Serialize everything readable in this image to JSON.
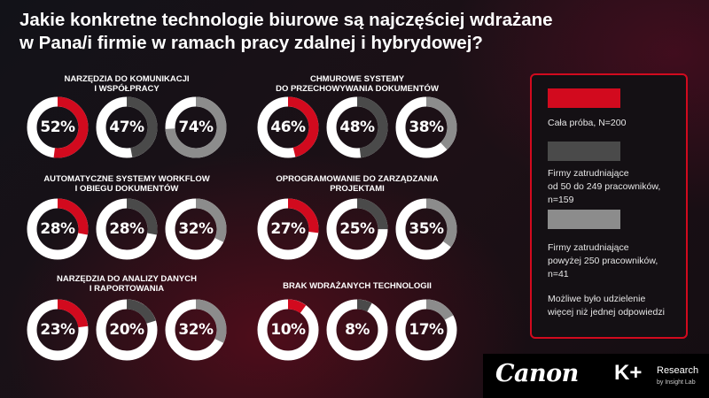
{
  "title": {
    "line1": "Jakie konkretne technologie biurowe są najczęściej wdrażane",
    "line2": "w Pana/i firmie w ramach pracy zdalnej i hybrydowej?"
  },
  "colors": {
    "series1": "#d20a1e",
    "series2": "#4a4a4a",
    "series3": "#8c8c8c",
    "track": "#ffffff"
  },
  "chart_data": {
    "type": "donut",
    "series": [
      {
        "name": "Cała próba, N=200",
        "color": "#d20a1e"
      },
      {
        "name": "Firmy zatrudniające od 50 do 249 pracowników, n=159",
        "color": "#4a4a4a"
      },
      {
        "name": "Firmy zatrudniające powyżej 250 pracowników, n=41",
        "color": "#8c8c8c"
      }
    ],
    "groups": [
      {
        "title_lines": [
          "NARZĘDZIA DO KOMUNIKACJI",
          "I WSPÓŁPRACY"
        ],
        "values": [
          52,
          47,
          74
        ],
        "labels": [
          "52%",
          "47%",
          "74%"
        ]
      },
      {
        "title_lines": [
          "CHMUROWE SYSTEMY",
          "DO PRZECHOWYWANIA DOKUMENTÓW"
        ],
        "values": [
          46,
          48,
          38
        ],
        "labels": [
          "46%",
          "48%",
          "38%"
        ]
      },
      {
        "title_lines": [
          "AUTOMATYCZNE SYSTEMY WORKFLOW",
          "I OBIEGU DOKUMENTÓW"
        ],
        "values": [
          28,
          28,
          32
        ],
        "labels": [
          "28%",
          "28%",
          "32%"
        ]
      },
      {
        "title_lines": [
          "OPROGRAMOWANIE DO ZARZĄDZANIA",
          "PROJEKTAMI"
        ],
        "values": [
          27,
          25,
          35
        ],
        "labels": [
          "27%",
          "25%",
          "35%"
        ]
      },
      {
        "title_lines": [
          "NARZĘDZIA DO ANALIZY DANYCH",
          "I RAPORTOWANIA"
        ],
        "values": [
          23,
          20,
          32
        ],
        "labels": [
          "23%",
          "20%",
          "32%"
        ]
      },
      {
        "title_lines": [
          "BRAK WDRAŻANYCH TECHNOLOGII"
        ],
        "values": [
          10,
          8,
          17
        ],
        "labels": [
          "10%",
          "8%",
          "17%"
        ]
      }
    ]
  },
  "legend": {
    "item1_lines": [
      "Cała próba, N=200"
    ],
    "item2_lines": [
      "Firmy zatrudniające",
      "od 50 do 249 pracowników,",
      "n=159"
    ],
    "item3_lines": [
      "Firmy zatrudniające",
      "powyżej 250 pracowników,",
      "n=41"
    ],
    "note_lines": [
      "Możliwe było udzielenie",
      "więcej niż jednej odpowiedzi"
    ]
  },
  "footer": {
    "canon": "Canon",
    "kplus": "K+",
    "research": "Research",
    "research_sub": "by Insight Lab"
  }
}
